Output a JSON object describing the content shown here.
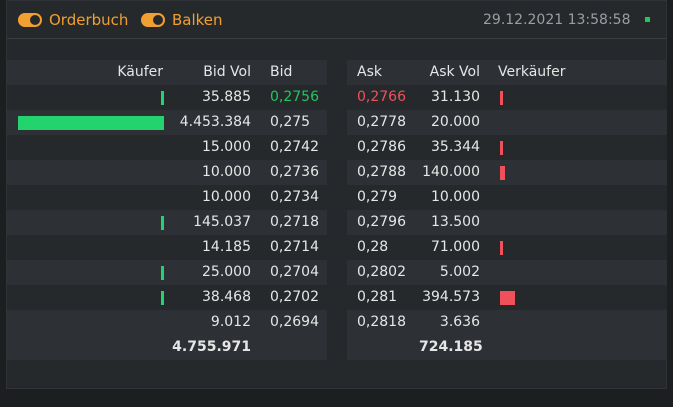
{
  "header": {
    "toggle_orderbook": "Orderbuch",
    "toggle_bars": "Balken",
    "timestamp": "29.12.2021 13:58:58"
  },
  "columns": {
    "buyer": "Käufer",
    "bid_vol": "Bid Vol",
    "bid": "Bid",
    "ask": "Ask",
    "ask_vol": "Ask Vol",
    "seller": "Verkäufer"
  },
  "rows": [
    {
      "bid_vol": "35.885",
      "bid": "0,2756",
      "ask": "0,2766",
      "ask_vol": "31.130",
      "buyer_bar": 0.003,
      "seller_bar": 0.003
    },
    {
      "bid_vol": "4.453.384",
      "bid": "0,275",
      "ask": "0,2778",
      "ask_vol": "20.000",
      "buyer_bar": 1.0,
      "seller_bar": 0.0
    },
    {
      "bid_vol": "15.000",
      "bid": "0,2742",
      "ask": "0,2786",
      "ask_vol": "35.344",
      "buyer_bar": 0.0,
      "seller_bar": 0.003
    },
    {
      "bid_vol": "10.000",
      "bid": "0,2736",
      "ask": "0,2788",
      "ask_vol": "140.000",
      "buyer_bar": 0.0,
      "seller_bar": 0.01
    },
    {
      "bid_vol": "10.000",
      "bid": "0,2734",
      "ask": "0,279",
      "ask_vol": "10.000",
      "buyer_bar": 0.0,
      "seller_bar": 0.0
    },
    {
      "bid_vol": "145.037",
      "bid": "0,2718",
      "ask": "0,2796",
      "ask_vol": "13.500",
      "buyer_bar": 0.023,
      "seller_bar": 0.0
    },
    {
      "bid_vol": "14.185",
      "bid": "0,2714",
      "ask": "0,28",
      "ask_vol": "71.000",
      "buyer_bar": 0.0,
      "seller_bar": 0.003
    },
    {
      "bid_vol": "25.000",
      "bid": "0,2704",
      "ask": "0,2802",
      "ask_vol": "5.002",
      "buyer_bar": 0.003,
      "seller_bar": 0.0
    },
    {
      "bid_vol": "38.468",
      "bid": "0,2702",
      "ask": "0,281",
      "ask_vol": "394.573",
      "buyer_bar": 0.003,
      "seller_bar": 0.03
    },
    {
      "bid_vol": "9.012",
      "bid": "0,2694",
      "ask": "0,2818",
      "ask_vol": "3.636",
      "buyer_bar": 0.0,
      "seller_bar": 0.0
    }
  ],
  "totals": {
    "bid_vol": "4.755.971",
    "ask_vol": "724.185"
  },
  "colors": {
    "accent": "#f0a030",
    "buy": "#22d36e",
    "sell": "#f0505a",
    "live": "#22c55e"
  },
  "icons": {
    "live": "status-dot-icon"
  }
}
